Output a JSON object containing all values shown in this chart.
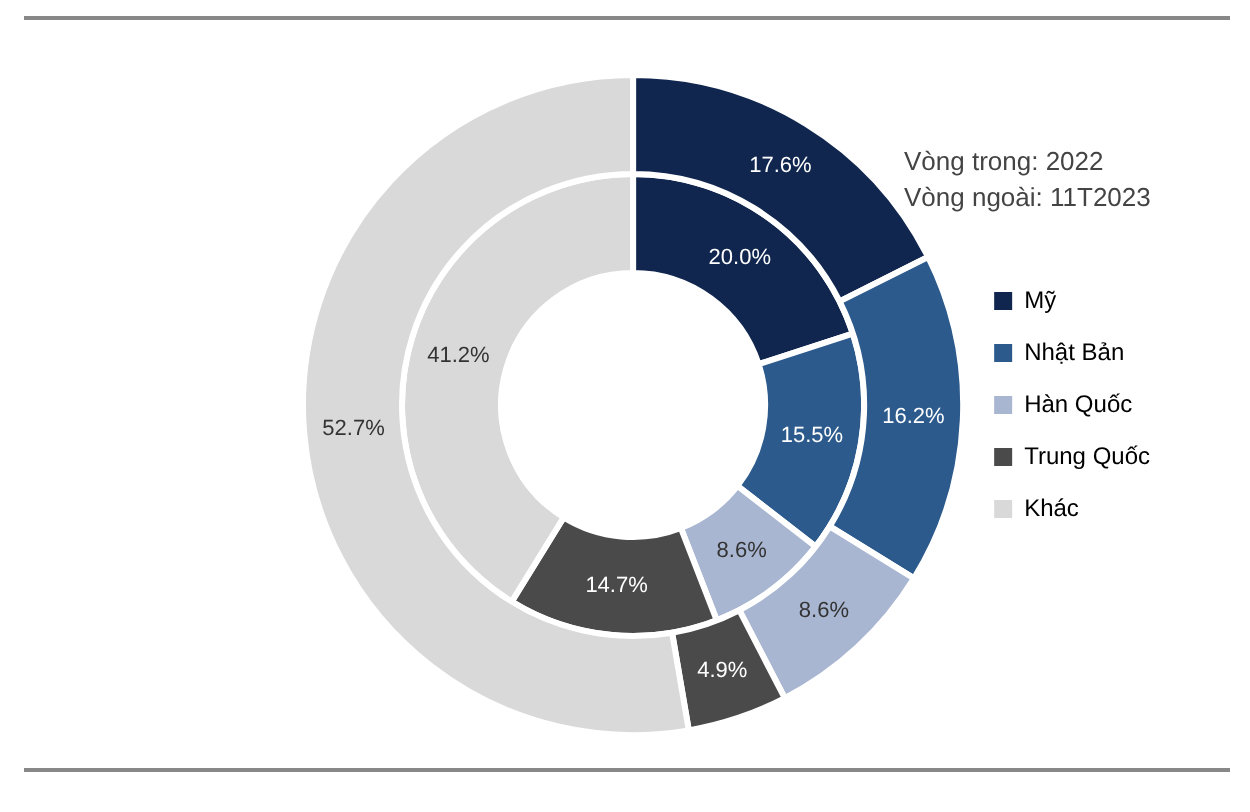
{
  "chart_data": {
    "type": "donut",
    "categories": [
      "Mỹ",
      "Nhật Bản",
      "Hàn Quốc",
      "Trung Quốc",
      "Khác"
    ],
    "colors": [
      "#10264f",
      "#2c5a8c",
      "#a9b6d2",
      "#4a4a4a",
      "#d9d9d9"
    ],
    "series": [
      {
        "values": [
          17.6,
          16.2,
          8.6,
          4.9,
          52.7
        ]
      },
      {
        "values": [
          20.0,
          15.5,
          8.6,
          14.7,
          41.2
        ]
      }
    ],
    "value_labels": [
      [
        "17.6%",
        "16.2%",
        "8.6%",
        "4.9%",
        "52.7%"
      ],
      [
        "20.0%",
        "15.5%",
        "8.6%",
        "14.7%",
        "41.2%"
      ]
    ],
    "annotations": [
      "Vòng trong: 2022",
      "Vòng ngoài: 11T2023"
    ],
    "legend": "right"
  }
}
